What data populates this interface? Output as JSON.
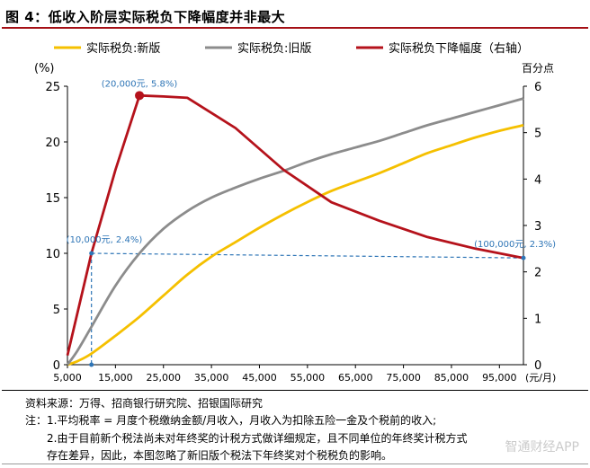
{
  "figure": {
    "title": "图 4：低收入阶层实际税负下降幅度并非最大"
  },
  "chart_data": {
    "type": "line",
    "y_left_unit": "(%)",
    "y_right_unit": "百分点",
    "x_unit": "(元/月)",
    "x_ticks": [
      "5,000",
      "15,000",
      "25,000",
      "35,000",
      "45,000",
      "55,000",
      "65,000",
      "75,000",
      "85,000",
      "95,000"
    ],
    "x_tick_values": [
      5000,
      15000,
      25000,
      35000,
      45000,
      55000,
      65000,
      75000,
      85000,
      95000
    ],
    "y_left_ticks": [
      0,
      5,
      10,
      15,
      20,
      25
    ],
    "y_right_ticks": [
      0,
      1,
      2,
      3,
      4,
      5,
      6
    ],
    "xlim": [
      5000,
      100000
    ],
    "ylim_left": [
      0,
      25
    ],
    "ylim_right": [
      0,
      6
    ],
    "grid": false,
    "legend_position": "top",
    "series": [
      {
        "name": "实际税负:新版",
        "axis": "left",
        "color": "#f5c000",
        "x": [
          5000,
          7000,
          10000,
          15000,
          20000,
          25000,
          30000,
          35000,
          40000,
          45000,
          50000,
          55000,
          60000,
          65000,
          70000,
          75000,
          80000,
          85000,
          90000,
          95000,
          100000
        ],
        "y": [
          0,
          0.3,
          1.0,
          2.6,
          4.3,
          6.2,
          8.1,
          9.7,
          11.0,
          12.3,
          13.5,
          14.6,
          15.6,
          16.4,
          17.2,
          18.1,
          19.0,
          19.7,
          20.4,
          21.0,
          21.5
        ]
      },
      {
        "name": "实际税负:旧版",
        "axis": "left",
        "color": "#8c8c8c",
        "x": [
          5000,
          7000,
          10000,
          15000,
          20000,
          25000,
          30000,
          35000,
          40000,
          45000,
          50000,
          55000,
          60000,
          65000,
          70000,
          75000,
          80000,
          85000,
          90000,
          95000,
          100000
        ],
        "y": [
          0,
          1.2,
          3.4,
          7.1,
          10.0,
          12.2,
          13.8,
          15.0,
          15.9,
          16.7,
          17.4,
          18.2,
          18.9,
          19.5,
          20.1,
          20.8,
          21.5,
          22.1,
          22.7,
          23.3,
          23.9
        ]
      },
      {
        "name": "实际税负下降幅度（右轴）",
        "axis": "right",
        "color": "#b5121b",
        "x": [
          5000,
          10000,
          15000,
          20000,
          25000,
          30000,
          40000,
          50000,
          60000,
          70000,
          80000,
          90000,
          100000
        ],
        "y": [
          0.2,
          2.4,
          4.2,
          5.8,
          5.78,
          5.75,
          5.1,
          4.2,
          3.5,
          3.1,
          2.75,
          2.5,
          2.3
        ]
      }
    ],
    "annotations": [
      {
        "label": "(20,000元, 5.8%)",
        "x": 20000,
        "y": 5.8,
        "axis": "right"
      },
      {
        "label": "(10,000元, 2.4%)",
        "x": 10000,
        "y": 2.4,
        "axis": "right"
      },
      {
        "label": "(100,000元, 2.3%)",
        "x": 100000,
        "y": 2.3,
        "axis": "right"
      }
    ],
    "annotation_color": "#2e75b6"
  },
  "notes": {
    "source": "资料来源：万得、招商银行研究院、招银国际研究",
    "note1": "注：1.平均税率 = 月度个税缴纳金额/月收入，月收入为扣除五险一金及个税前的收入;",
    "note2a": "2.由于目前新个税法尚未对年终奖的计税方式做详细规定，且不同单位的年终奖计税方式",
    "note2b": "存在差异，因此，本图忽略了新旧版个税法下年终奖对个税税负的影响。"
  },
  "watermark": "智通财经APP"
}
